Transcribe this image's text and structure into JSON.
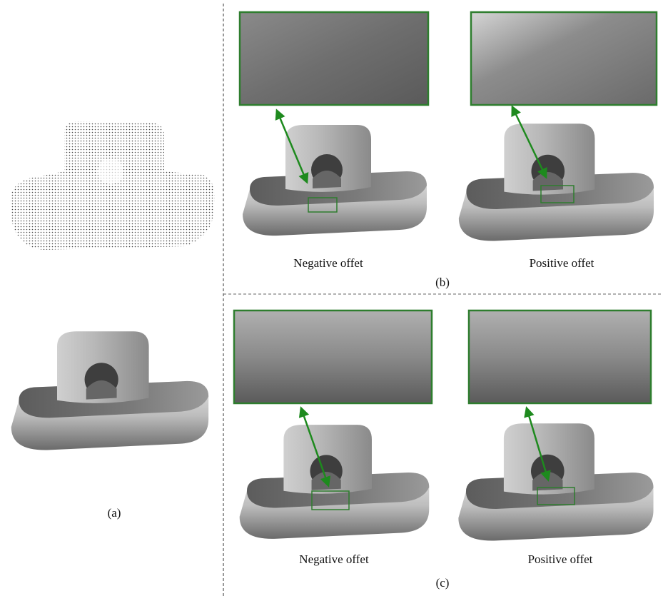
{
  "panel_a": {
    "label": "(a)"
  },
  "panel_b": {
    "left_caption": "Negative offet",
    "right_caption": "Positive offet",
    "label": "(b)"
  },
  "panel_c": {
    "left_caption": "Negative offet",
    "right_caption": "Positive offet",
    "label": "(c)"
  }
}
